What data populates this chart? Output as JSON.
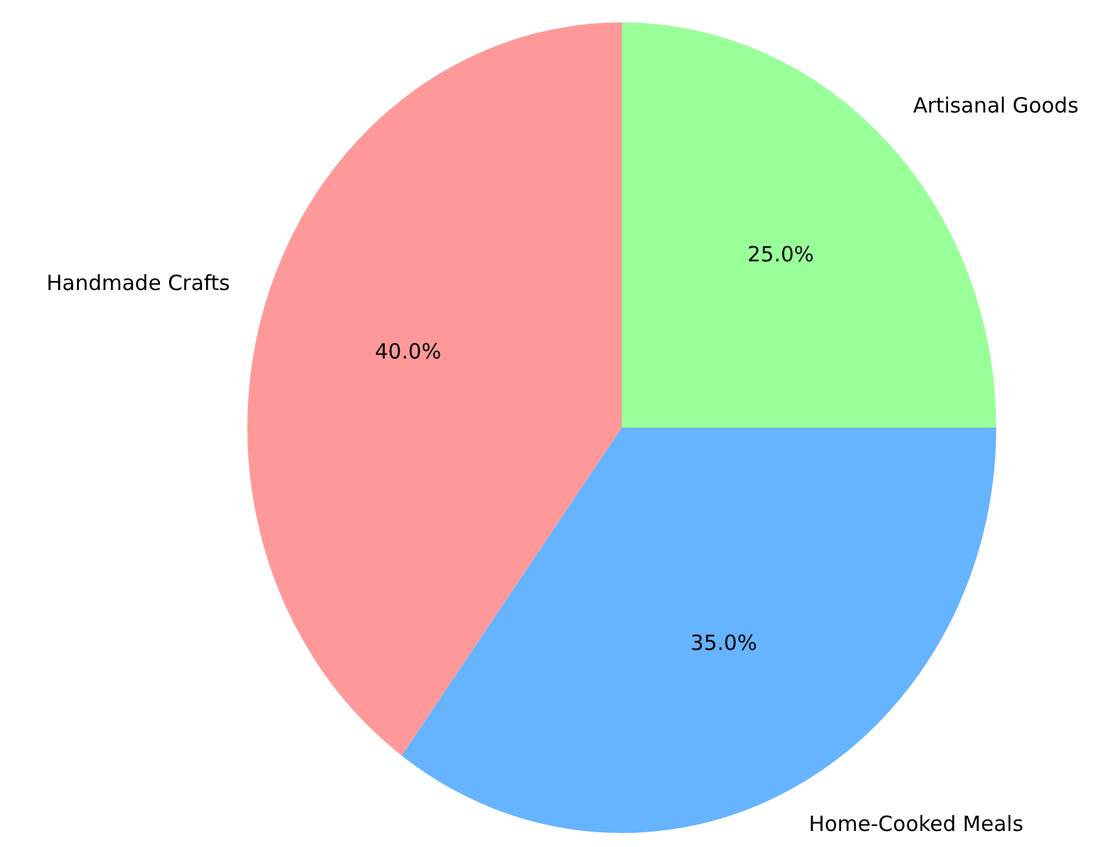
{
  "chart_data": {
    "type": "pie",
    "categories": [
      "Handmade Crafts",
      "Home-Cooked Meals",
      "Artisanal Goods"
    ],
    "values": [
      40,
      35,
      25
    ],
    "colors": [
      "#ff9999",
      "#66b3ff",
      "#99ff99"
    ],
    "value_labels": [
      "40.0%",
      "35.0%",
      "25.0%"
    ]
  }
}
